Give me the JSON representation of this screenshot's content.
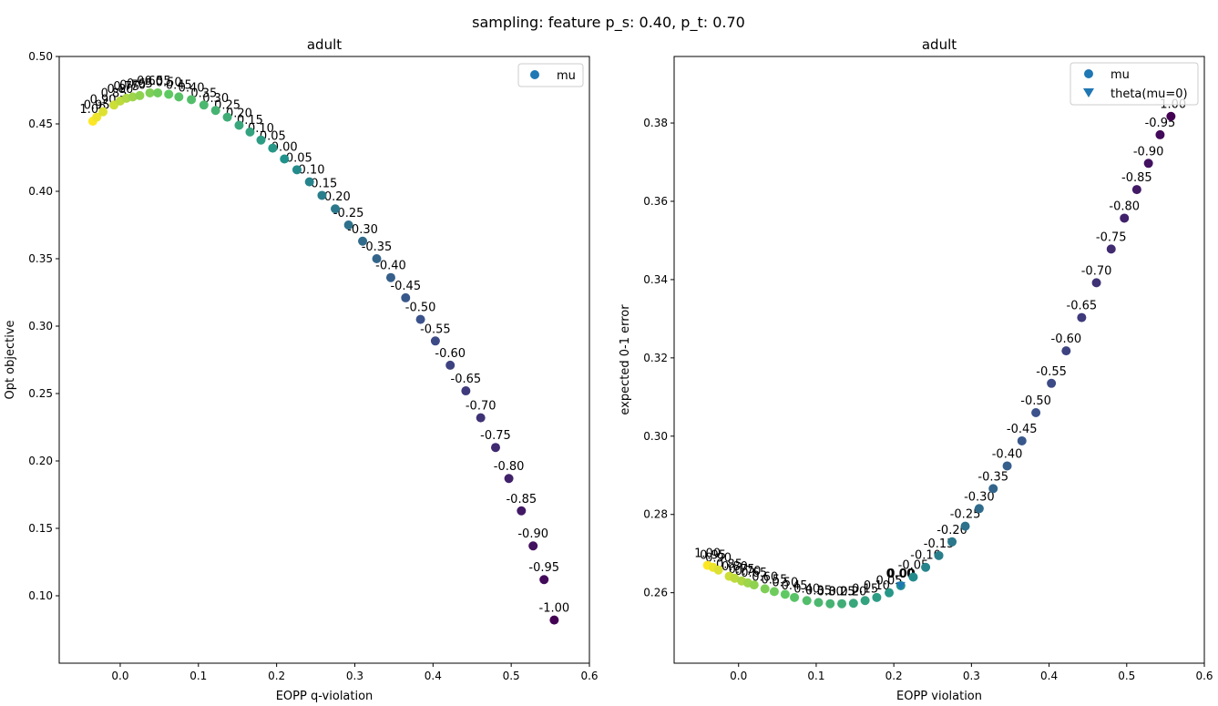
{
  "suptitle": "sampling: feature p_s: 0.40, p_t: 0.70",
  "chart_data": [
    {
      "type": "scatter",
      "title": "adult",
      "xlabel": "EOPP q-violation",
      "ylabel": "Opt objective",
      "xlim": [
        -0.078,
        0.6
      ],
      "ylim": [
        0.05,
        0.5
      ],
      "xticks": [
        0.0,
        0.1,
        0.2,
        0.3,
        0.4,
        0.5,
        0.6
      ],
      "xtick_labels": [
        "0.0",
        "0.1",
        "0.2",
        "0.3",
        "0.4",
        "0.5",
        "0.6"
      ],
      "yticks": [
        0.1,
        0.15,
        0.2,
        0.25,
        0.3,
        0.35,
        0.4,
        0.45,
        0.5
      ],
      "ytick_labels": [
        "0.10",
        "0.15",
        "0.20",
        "0.25",
        "0.30",
        "0.35",
        "0.40",
        "0.45",
        "0.50"
      ],
      "legend": {
        "position": "top-right",
        "entries": [
          {
            "label": "mu",
            "marker": "circle",
            "color": "#1f77b4"
          }
        ]
      },
      "colormap": "viridis",
      "color_range": [
        -1.0,
        1.0
      ],
      "series": [
        {
          "name": "mu",
          "marker": "circle",
          "points": [
            {
              "x": -0.035,
              "y": 0.452,
              "mu": 1.0,
              "label": "1.00"
            },
            {
              "x": -0.03,
              "y": 0.455,
              "mu": 0.95,
              "label": "0.95"
            },
            {
              "x": -0.022,
              "y": 0.459,
              "mu": 0.9,
              "label": "0.90"
            },
            {
              "x": -0.008,
              "y": 0.464,
              "mu": 0.85,
              "label": "0.85"
            },
            {
              "x": 0.0,
              "y": 0.467,
              "mu": 0.8,
              "label": "0.80"
            },
            {
              "x": 0.008,
              "y": 0.469,
              "mu": 0.75,
              "label": "0.75"
            },
            {
              "x": 0.016,
              "y": 0.47,
              "mu": 0.7,
              "label": "0.70"
            },
            {
              "x": 0.025,
              "y": 0.471,
              "mu": 0.65,
              "label": "0.65"
            },
            {
              "x": 0.038,
              "y": 0.473,
              "mu": 0.6,
              "label": "0.60"
            },
            {
              "x": 0.048,
              "y": 0.473,
              "mu": 0.55,
              "label": "0.55"
            },
            {
              "x": 0.062,
              "y": 0.472,
              "mu": 0.5,
              "label": "0.50"
            },
            {
              "x": 0.075,
              "y": 0.47,
              "mu": 0.45,
              "label": "0.45"
            },
            {
              "x": 0.091,
              "y": 0.468,
              "mu": 0.4,
              "label": "0.40"
            },
            {
              "x": 0.107,
              "y": 0.464,
              "mu": 0.35,
              "label": "0.35"
            },
            {
              "x": 0.122,
              "y": 0.46,
              "mu": 0.3,
              "label": "0.30"
            },
            {
              "x": 0.137,
              "y": 0.455,
              "mu": 0.25,
              "label": "0.25"
            },
            {
              "x": 0.152,
              "y": 0.449,
              "mu": 0.2,
              "label": "0.20"
            },
            {
              "x": 0.166,
              "y": 0.444,
              "mu": 0.15,
              "label": "0.15"
            },
            {
              "x": 0.18,
              "y": 0.438,
              "mu": 0.1,
              "label": "0.10"
            },
            {
              "x": 0.195,
              "y": 0.432,
              "mu": 0.05,
              "label": "0.05"
            },
            {
              "x": 0.21,
              "y": 0.424,
              "mu": 0.0,
              "label": "0.00"
            },
            {
              "x": 0.226,
              "y": 0.416,
              "mu": -0.05,
              "label": "-0.05"
            },
            {
              "x": 0.242,
              "y": 0.407,
              "mu": -0.1,
              "label": "-0.10"
            },
            {
              "x": 0.258,
              "y": 0.397,
              "mu": -0.15,
              "label": "-0.15"
            },
            {
              "x": 0.275,
              "y": 0.387,
              "mu": -0.2,
              "label": "-0.20"
            },
            {
              "x": 0.292,
              "y": 0.375,
              "mu": -0.25,
              "label": "-0.25"
            },
            {
              "x": 0.31,
              "y": 0.363,
              "mu": -0.3,
              "label": "-0.30"
            },
            {
              "x": 0.328,
              "y": 0.35,
              "mu": -0.35,
              "label": "-0.35"
            },
            {
              "x": 0.346,
              "y": 0.336,
              "mu": -0.4,
              "label": "-0.40"
            },
            {
              "x": 0.365,
              "y": 0.321,
              "mu": -0.45,
              "label": "-0.45"
            },
            {
              "x": 0.384,
              "y": 0.305,
              "mu": -0.5,
              "label": "-0.50"
            },
            {
              "x": 0.403,
              "y": 0.289,
              "mu": -0.55,
              "label": "-0.55"
            },
            {
              "x": 0.422,
              "y": 0.271,
              "mu": -0.6,
              "label": "-0.60"
            },
            {
              "x": 0.442,
              "y": 0.252,
              "mu": -0.65,
              "label": "-0.65"
            },
            {
              "x": 0.461,
              "y": 0.232,
              "mu": -0.7,
              "label": "-0.70"
            },
            {
              "x": 0.48,
              "y": 0.21,
              "mu": -0.75,
              "label": "-0.75"
            },
            {
              "x": 0.497,
              "y": 0.187,
              "mu": -0.8,
              "label": "-0.80"
            },
            {
              "x": 0.513,
              "y": 0.163,
              "mu": -0.85,
              "label": "-0.85"
            },
            {
              "x": 0.528,
              "y": 0.137,
              "mu": -0.9,
              "label": "-0.90"
            },
            {
              "x": 0.542,
              "y": 0.112,
              "mu": -0.95,
              "label": "-0.95"
            },
            {
              "x": 0.555,
              "y": 0.082,
              "mu": -1.0,
              "label": "-1.00"
            }
          ]
        }
      ]
    },
    {
      "type": "scatter",
      "title": "adult",
      "xlabel": "EOPP violation",
      "ylabel": "expected 0-1 error",
      "xlim": [
        -0.083,
        0.6
      ],
      "ylim": [
        0.242,
        0.397
      ],
      "xticks": [
        0.0,
        0.1,
        0.2,
        0.3,
        0.4,
        0.5,
        0.6
      ],
      "xtick_labels": [
        "0.0",
        "0.1",
        "0.2",
        "0.3",
        "0.4",
        "0.5",
        "0.6"
      ],
      "yticks": [
        0.26,
        0.28,
        0.3,
        0.32,
        0.34,
        0.36,
        0.38
      ],
      "ytick_labels": [
        "0.26",
        "0.28",
        "0.30",
        "0.32",
        "0.34",
        "0.36",
        "0.38"
      ],
      "legend": {
        "position": "top-right",
        "entries": [
          {
            "label": "mu",
            "marker": "circle",
            "color": "#1f77b4"
          },
          {
            "label": "theta(mu=0)",
            "marker": "triangle-down",
            "color": "#1f77b4"
          }
        ]
      },
      "colormap": "viridis",
      "color_range": [
        -1.0,
        1.0
      ],
      "series": [
        {
          "name": "mu",
          "marker": "circle",
          "points": [
            {
              "x": -0.04,
              "y": 0.267,
              "mu": 1.0,
              "label": "1.00"
            },
            {
              "x": -0.033,
              "y": 0.2665,
              "mu": 0.95,
              "label": "0.95"
            },
            {
              "x": -0.026,
              "y": 0.2658,
              "mu": 0.9,
              "label": "0.90"
            },
            {
              "x": -0.012,
              "y": 0.2642,
              "mu": 0.85,
              "label": "0.85"
            },
            {
              "x": -0.005,
              "y": 0.2637,
              "mu": 0.8,
              "label": "0.80"
            },
            {
              "x": 0.004,
              "y": 0.263,
              "mu": 0.75,
              "label": "0.75"
            },
            {
              "x": 0.012,
              "y": 0.2625,
              "mu": 0.7,
              "label": "0.70"
            },
            {
              "x": 0.02,
              "y": 0.262,
              "mu": 0.65,
              "label": "0.65"
            },
            {
              "x": 0.034,
              "y": 0.261,
              "mu": 0.6,
              "label": "0.60"
            },
            {
              "x": 0.046,
              "y": 0.2603,
              "mu": 0.55,
              "label": "0.55"
            },
            {
              "x": 0.06,
              "y": 0.2596,
              "mu": 0.5,
              "label": "0.50"
            },
            {
              "x": 0.072,
              "y": 0.2588,
              "mu": 0.45,
              "label": "0.45"
            },
            {
              "x": 0.088,
              "y": 0.258,
              "mu": 0.4,
              "label": "0.40"
            },
            {
              "x": 0.103,
              "y": 0.2575,
              "mu": 0.35,
              "label": "0.35"
            },
            {
              "x": 0.118,
              "y": 0.2572,
              "mu": 0.3,
              "label": "0.30"
            },
            {
              "x": 0.133,
              "y": 0.2572,
              "mu": 0.25,
              "label": "0.25"
            },
            {
              "x": 0.148,
              "y": 0.2573,
              "mu": 0.2,
              "label": "0.20"
            },
            {
              "x": 0.163,
              "y": 0.258,
              "mu": 0.15,
              "label": "0.15"
            },
            {
              "x": 0.178,
              "y": 0.2588,
              "mu": 0.1,
              "label": "0.10"
            },
            {
              "x": 0.194,
              "y": 0.26,
              "mu": 0.05,
              "label": "0.05"
            },
            {
              "x": 0.209,
              "y": 0.2618,
              "mu": 0.0,
              "label": "0.00"
            },
            {
              "x": 0.225,
              "y": 0.264,
              "mu": -0.05,
              "label": "-0.05"
            },
            {
              "x": 0.241,
              "y": 0.2665,
              "mu": -0.1,
              "label": "-0.10"
            },
            {
              "x": 0.258,
              "y": 0.2695,
              "mu": -0.15,
              "label": "-0.15"
            },
            {
              "x": 0.275,
              "y": 0.273,
              "mu": -0.2,
              "label": "-0.20"
            },
            {
              "x": 0.292,
              "y": 0.277,
              "mu": -0.25,
              "label": "-0.25"
            },
            {
              "x": 0.31,
              "y": 0.2815,
              "mu": -0.3,
              "label": "-0.30"
            },
            {
              "x": 0.328,
              "y": 0.2866,
              "mu": -0.35,
              "label": "-0.35"
            },
            {
              "x": 0.346,
              "y": 0.2924,
              "mu": -0.4,
              "label": "-0.40"
            },
            {
              "x": 0.365,
              "y": 0.2988,
              "mu": -0.45,
              "label": "-0.45"
            },
            {
              "x": 0.383,
              "y": 0.306,
              "mu": -0.5,
              "label": "-0.50"
            },
            {
              "x": 0.403,
              "y": 0.3135,
              "mu": -0.55,
              "label": "-0.55"
            },
            {
              "x": 0.422,
              "y": 0.3218,
              "mu": -0.6,
              "label": "-0.60"
            },
            {
              "x": 0.442,
              "y": 0.3303,
              "mu": -0.65,
              "label": "-0.65"
            },
            {
              "x": 0.461,
              "y": 0.3392,
              "mu": -0.7,
              "label": "-0.70"
            },
            {
              "x": 0.48,
              "y": 0.3478,
              "mu": -0.75,
              "label": "-0.75"
            },
            {
              "x": 0.497,
              "y": 0.3557,
              "mu": -0.8,
              "label": "-0.80"
            },
            {
              "x": 0.513,
              "y": 0.363,
              "mu": -0.85,
              "label": "-0.85"
            },
            {
              "x": 0.528,
              "y": 0.3697,
              "mu": -0.9,
              "label": "-0.90"
            },
            {
              "x": 0.543,
              "y": 0.377,
              "mu": -0.95,
              "label": "-0.95"
            },
            {
              "x": 0.557,
              "y": 0.3817,
              "mu": -1.0,
              "label": "-1.00"
            }
          ]
        },
        {
          "name": "theta(mu=0)",
          "marker": "triangle-down",
          "color": "#1f77b4",
          "points": [
            {
              "x": 0.209,
              "y": 0.2618,
              "label": "0.00"
            }
          ]
        }
      ]
    }
  ]
}
